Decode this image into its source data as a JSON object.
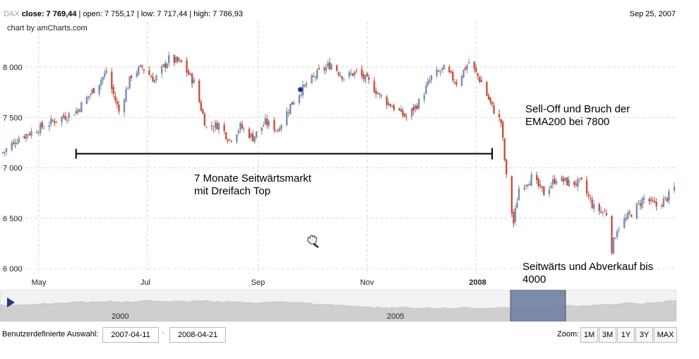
{
  "header": {
    "symbol": "DAX",
    "close_label": "close:",
    "close_value": "7 769,44",
    "open_label": "open:",
    "open_value": "7 755,17",
    "low_label": "low:",
    "low_value": "7 717,44",
    "high_label": "high:",
    "high_value": "7 786,93",
    "date": "Sep 25, 2007",
    "credit": "chart by amCharts.com"
  },
  "annotations": {
    "sideways_line1": "7 Monate Seitwärtsmarkt",
    "sideways_line2": "mit Dreifach Top",
    "selloff_line1": "Sell-Off und Bruch der",
    "selloff_line2": "EMA200 bei 7800",
    "outlook_line1": "Seitwärts und Abverkauf bis",
    "outlook_line2": "4000"
  },
  "navigator": {
    "labels": [
      "2000",
      "2005"
    ],
    "play_icon": "play-icon"
  },
  "controls": {
    "custom_selection_label": "Benutzerdefinierte Auswahl:",
    "date_from": "2007-04-11",
    "date_to": "2008-04-21",
    "separator": "-",
    "zoom_label": "Zoom:",
    "zoom_buttons": [
      "1M",
      "3M",
      "1Y",
      "3Y",
      "MAX"
    ]
  },
  "colors": {
    "up": "#7b8cae",
    "down": "#c8503c",
    "grid": "#d8d8d8",
    "nav_area": "#cfcfcf",
    "nav_selected": "#7585a4"
  },
  "chart_data": {
    "type": "candlestick",
    "title": "DAX",
    "ylim": [
      6000,
      8250
    ],
    "y_ticks": [
      6000,
      6500,
      7000,
      7500,
      8000
    ],
    "y_tick_labels": [
      "6 000",
      "6 500",
      "7 000",
      "7 500",
      "8 000"
    ],
    "x_ticks": [
      {
        "date": "2007-05-01",
        "label": "May",
        "bold": false
      },
      {
        "date": "2007-07-01",
        "label": "Jul",
        "bold": false
      },
      {
        "date": "2007-09-01",
        "label": "Sep",
        "bold": false
      },
      {
        "date": "2007-11-01",
        "label": "Nov",
        "bold": false
      },
      {
        "date": "2008-01-01",
        "label": "2008",
        "bold": true
      }
    ],
    "x_range": [
      "2007-04-11",
      "2008-04-21"
    ],
    "close_path": [
      [
        "2007-04-11",
        7150
      ],
      [
        "2007-04-20",
        7300
      ],
      [
        "2007-04-30",
        7380
      ],
      [
        "2007-05-10",
        7470
      ],
      [
        "2007-05-22",
        7560
      ],
      [
        "2007-06-01",
        7780
      ],
      [
        "2007-06-08",
        7950
      ],
      [
        "2007-06-15",
        7560
      ],
      [
        "2007-06-22",
        7920
      ],
      [
        "2007-06-28",
        8000
      ],
      [
        "2007-07-05",
        7870
      ],
      [
        "2007-07-13",
        8080
      ],
      [
        "2007-07-20",
        8040
      ],
      [
        "2007-07-27",
        7850
      ],
      [
        "2007-08-03",
        7400
      ],
      [
        "2007-08-10",
        7430
      ],
      [
        "2007-08-16",
        7280
      ],
      [
        "2007-08-22",
        7410
      ],
      [
        "2007-08-29",
        7300
      ],
      [
        "2007-09-05",
        7450
      ],
      [
        "2007-09-12",
        7380
      ],
      [
        "2007-09-19",
        7620
      ],
      [
        "2007-09-25",
        7770
      ],
      [
        "2007-10-05",
        7950
      ],
      [
        "2007-10-12",
        8030
      ],
      [
        "2007-10-19",
        7900
      ],
      [
        "2007-10-26",
        7950
      ],
      [
        "2007-11-02",
        7850
      ],
      [
        "2007-11-09",
        7700
      ],
      [
        "2007-11-16",
        7600
      ],
      [
        "2007-11-23",
        7500
      ],
      [
        "2007-11-30",
        7650
      ],
      [
        "2007-12-07",
        7900
      ],
      [
        "2007-12-14",
        7980
      ],
      [
        "2007-12-21",
        7850
      ],
      [
        "2007-12-28",
        8050
      ],
      [
        "2008-01-04",
        7850
      ],
      [
        "2008-01-10",
        7600
      ],
      [
        "2008-01-15",
        7450
      ],
      [
        "2008-01-18",
        6900
      ],
      [
        "2008-01-22",
        6450
      ],
      [
        "2008-01-25",
        6800
      ],
      [
        "2008-02-01",
        6900
      ],
      [
        "2008-02-08",
        6750
      ],
      [
        "2008-02-15",
        6900
      ],
      [
        "2008-02-22",
        6850
      ],
      [
        "2008-02-29",
        6850
      ],
      [
        "2008-03-07",
        6600
      ],
      [
        "2008-03-14",
        6550
      ],
      [
        "2008-03-17",
        6200
      ],
      [
        "2008-03-20",
        6400
      ],
      [
        "2008-03-28",
        6550
      ],
      [
        "2008-04-04",
        6700
      ],
      [
        "2008-04-11",
        6620
      ],
      [
        "2008-04-17",
        6700
      ],
      [
        "2008-04-21",
        6800
      ]
    ],
    "event_marker": {
      "date": "2007-09-25",
      "value": 7770
    },
    "range_bar": {
      "from": "2007-05-22",
      "to": "2008-01-10",
      "value": 7140
    }
  }
}
